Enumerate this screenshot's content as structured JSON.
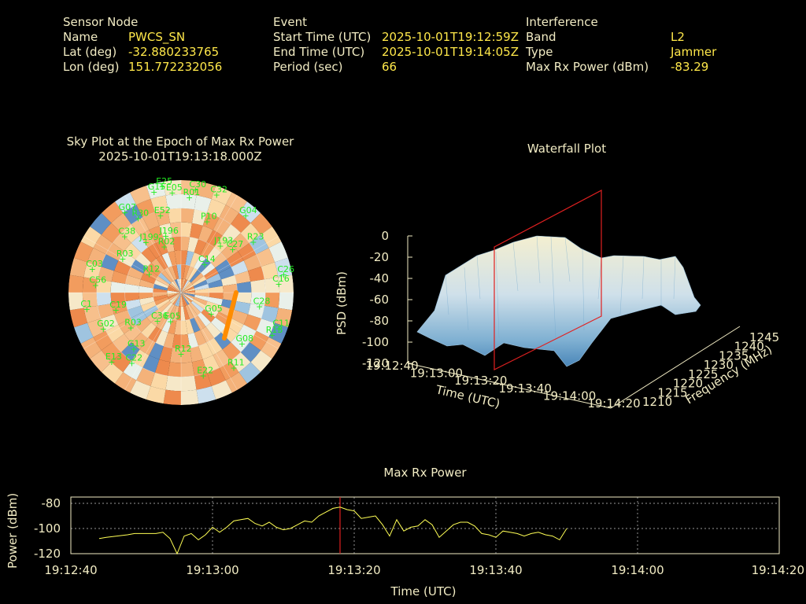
{
  "header": {
    "sensor": {
      "heading": "Sensor Node",
      "rows": [
        {
          "label": "Name",
          "value": "PWCS_SN"
        },
        {
          "label": "Lat (deg)",
          "value": "-32.880233765"
        },
        {
          "label": "Lon (deg)",
          "value": "151.772232056"
        }
      ]
    },
    "event": {
      "heading": "Event",
      "rows": [
        {
          "label": "Start Time (UTC)",
          "value": "2025-10-01T19:12:59Z"
        },
        {
          "label": "End Time (UTC)",
          "value": "2025-10-01T19:14:05Z"
        },
        {
          "label": "Period (sec)",
          "value": "66"
        }
      ]
    },
    "interference": {
      "heading": "Interference",
      "rows": [
        {
          "label": "Band",
          "value": "L2"
        },
        {
          "label": "Type",
          "value": "Jammer"
        },
        {
          "label": "Max Rx Power (dBm)",
          "value": "-83.29"
        }
      ]
    }
  },
  "chart_data": [
    {
      "type": "sky-polar",
      "title": "Sky Plot at the Epoch of Max Rx Power",
      "subtitle": "2025-10-01T19:13:18.000Z",
      "satellites": [
        {
          "id": "G15",
          "az": -15,
          "el": 5
        },
        {
          "id": "E25",
          "az": -10,
          "el": 2
        },
        {
          "id": "E05",
          "az": -5,
          "el": 8
        },
        {
          "id": "C30",
          "az": 8,
          "el": 5
        },
        {
          "id": "C32",
          "az": 20,
          "el": 5
        },
        {
          "id": "R01",
          "az": 5,
          "el": 12
        },
        {
          "id": "G04",
          "az": 40,
          "el": 8
        },
        {
          "id": "G07",
          "az": -35,
          "el": 10
        },
        {
          "id": "R30",
          "az": -30,
          "el": 20
        },
        {
          "id": "E52",
          "az": -15,
          "el": 25
        },
        {
          "id": "P10",
          "az": 20,
          "el": 28
        },
        {
          "id": "R23",
          "az": 55,
          "el": 18
        },
        {
          "id": "C38",
          "az": -45,
          "el": 25
        },
        {
          "id": "C27",
          "az": 50,
          "el": 35
        },
        {
          "id": "J193",
          "az": 40,
          "el": 40
        },
        {
          "id": "J199",
          "az": -35,
          "el": 40
        },
        {
          "id": "J196",
          "az": -15,
          "el": 42
        },
        {
          "id": "R02",
          "az": -20,
          "el": 50
        },
        {
          "id": "C14",
          "az": 40,
          "el": 60
        },
        {
          "id": "R03",
          "az": -60,
          "el": 35
        },
        {
          "id": "C03",
          "az": -75,
          "el": 15
        },
        {
          "id": "C56",
          "az": -85,
          "el": 20
        },
        {
          "id": "C1",
          "az": -100,
          "el": 12
        },
        {
          "id": "C19",
          "az": -105,
          "el": 35
        },
        {
          "id": "R12",
          "az": -60,
          "el": 60
        },
        {
          "id": "C11",
          "az": 110,
          "el": 5
        },
        {
          "id": "C28",
          "az": 100,
          "el": 25
        },
        {
          "id": "G08",
          "az": 130,
          "el": 25
        },
        {
          "id": "R13",
          "az": 115,
          "el": 8
        },
        {
          "id": "R11",
          "az": 145,
          "el": 15
        },
        {
          "id": "E22",
          "az": 165,
          "el": 20
        },
        {
          "id": "R12",
          "az": 180,
          "el": 40
        },
        {
          "id": "C36",
          "az": -140,
          "el": 60
        },
        {
          "id": "E05",
          "az": -160,
          "el": 65
        },
        {
          "id": "C22",
          "az": -145,
          "el": 20
        },
        {
          "id": "E13",
          "az": -135,
          "el": 10
        },
        {
          "id": "G13",
          "az": -140,
          "el": 30
        },
        {
          "id": "R03",
          "az": -125,
          "el": 40
        },
        {
          "id": "G02",
          "az": -115,
          "el": 20
        },
        {
          "id": "G05",
          "az": 125,
          "el": 60
        },
        {
          "id": "C26",
          "az": 80,
          "el": 5
        },
        {
          "id": "C16",
          "az": 85,
          "el": 10
        }
      ]
    },
    {
      "type": "surface-3d",
      "title": "Waterfall Plot",
      "xlabel": "Time (UTC)",
      "ylabel": "Frequency (MHz)",
      "zlabel": "PSD (dBm)",
      "time_ticks": [
        "19:12:40",
        "19:13:00",
        "19:13:20",
        "19:13:40",
        "19:14:00",
        "19:14:20"
      ],
      "freq_ticks": [
        "1210",
        "1215",
        "1220",
        "1225",
        "1230",
        "1235",
        "1240",
        "1245"
      ],
      "z_ticks": [
        "0",
        "-20",
        "-40",
        "-60",
        "-80",
        "-100",
        "-120"
      ],
      "zlim": [
        -120,
        0
      ]
    },
    {
      "type": "line",
      "title": "Max Rx Power",
      "xlabel": "Time (UTC)",
      "ylabel": "Power (dBm)",
      "ylim": [
        -120,
        -75
      ],
      "yticks": [
        -80,
        -100,
        -120
      ],
      "xticks": [
        "19:12:40",
        "19:13:00",
        "19:13:20",
        "19:13:40",
        "19:14:00",
        "19:14:20"
      ],
      "x_range_sec": [
        0,
        100
      ],
      "marker_sec": 38,
      "series": [
        {
          "color": "#ffff55",
          "points": [
            [
              4,
              -108
            ],
            [
              5,
              -107
            ],
            [
              8,
              -105
            ],
            [
              9,
              -104
            ],
            [
              12,
              -104
            ],
            [
              13,
              -103
            ],
            [
              14,
              -108
            ],
            [
              15,
              -120
            ],
            [
              16,
              -106
            ],
            [
              17,
              -104
            ],
            [
              18,
              -109
            ],
            [
              19,
              -105
            ],
            [
              20,
              -99
            ],
            [
              21,
              -103
            ],
            [
              22,
              -99
            ],
            [
              23,
              -94
            ],
            [
              24,
              -93
            ],
            [
              25,
              -92
            ],
            [
              26,
              -96
            ],
            [
              27,
              -98
            ],
            [
              28,
              -95
            ],
            [
              29,
              -99
            ],
            [
              30,
              -101
            ],
            [
              31,
              -100
            ],
            [
              32,
              -97
            ],
            [
              33,
              -94
            ],
            [
              34,
              -95
            ],
            [
              35,
              -90
            ],
            [
              36,
              -87
            ],
            [
              37,
              -84
            ],
            [
              38,
              -83
            ],
            [
              39,
              -85
            ],
            [
              40,
              -86
            ],
            [
              41,
              -92
            ],
            [
              42,
              -91
            ],
            [
              43,
              -90
            ],
            [
              44,
              -97
            ],
            [
              45,
              -106
            ],
            [
              46,
              -93
            ],
            [
              47,
              -102
            ],
            [
              48,
              -99
            ],
            [
              49,
              -98
            ],
            [
              50,
              -93
            ],
            [
              51,
              -97
            ],
            [
              52,
              -107
            ],
            [
              53,
              -102
            ],
            [
              54,
              -97
            ],
            [
              55,
              -95
            ],
            [
              56,
              -95
            ],
            [
              57,
              -98
            ],
            [
              58,
              -104
            ],
            [
              59,
              -105
            ],
            [
              60,
              -107
            ],
            [
              61,
              -102
            ],
            [
              62,
              -103
            ],
            [
              63,
              -104
            ],
            [
              64,
              -106
            ],
            [
              65,
              -104
            ],
            [
              66,
              -103
            ],
            [
              67,
              -105
            ],
            [
              68,
              -106
            ],
            [
              69,
              -109
            ],
            [
              70,
              -100
            ]
          ]
        }
      ]
    }
  ]
}
